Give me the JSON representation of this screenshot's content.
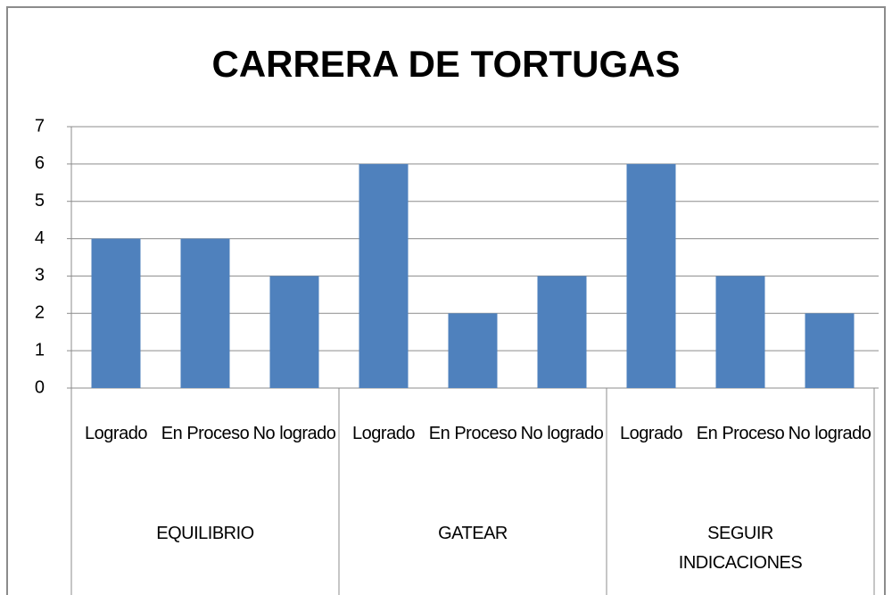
{
  "chart_data": {
    "type": "bar",
    "title": "CARRERA DE TORTUGAS",
    "categories": [
      "Logrado",
      "En Proceso",
      "No logrado",
      "Logrado",
      "En Proceso",
      "No logrado",
      "Logrado",
      "En Proceso",
      "No logrado"
    ],
    "groups": [
      "EQUILIBRIO",
      "GATEAR",
      "SEGUIR INDICACIONES"
    ],
    "values": [
      4,
      4,
      3,
      6,
      2,
      3,
      6,
      3,
      2
    ],
    "color": "#4f81bd",
    "ylim": [
      0,
      7
    ],
    "yticks": [
      0,
      1,
      2,
      3,
      4,
      5,
      6,
      7
    ],
    "grid": true
  }
}
